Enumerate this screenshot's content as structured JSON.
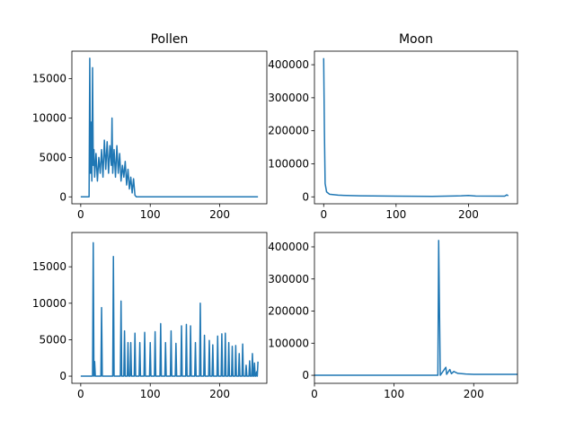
{
  "chart_data": [
    {
      "type": "line",
      "title": "Pollen",
      "color": "#1f77b4",
      "x": [
        0,
        12,
        13,
        14,
        15,
        16,
        17,
        18,
        19,
        20,
        22,
        24,
        26,
        28,
        30,
        32,
        34,
        36,
        38,
        40,
        42,
        44,
        45,
        46,
        48,
        50,
        52,
        54,
        56,
        58,
        60,
        62,
        64,
        66,
        68,
        70,
        72,
        74,
        76,
        78,
        80,
        255
      ],
      "values": [
        0,
        0,
        17600,
        3000,
        9500,
        2000,
        16400,
        4000,
        6000,
        2500,
        5500,
        2000,
        5000,
        3000,
        6000,
        2500,
        7200,
        3500,
        7000,
        3000,
        6500,
        4000,
        10000,
        3000,
        6000,
        2500,
        6500,
        3000,
        5500,
        2000,
        4000,
        2500,
        4500,
        1500,
        3500,
        1000,
        2500,
        500,
        2300,
        200,
        0,
        0
      ],
      "xlim": [
        -12.75,
        267.75
      ],
      "ylim": [
        -880,
        18500
      ],
      "xticks": [
        0,
        100,
        200
      ],
      "yticks": [
        0,
        5000,
        10000,
        15000
      ]
    },
    {
      "type": "line",
      "title": "Moon",
      "color": "#1f77b4",
      "x": [
        0,
        1,
        2,
        4,
        8,
        20,
        50,
        100,
        150,
        190,
        200,
        210,
        250,
        253,
        255
      ],
      "values": [
        420000,
        200000,
        40000,
        15000,
        8000,
        5000,
        3000,
        2000,
        1500,
        3000,
        4000,
        2500,
        2000,
        6000,
        3000
      ],
      "xlim": [
        -12.75,
        267.75
      ],
      "ylim": [
        -21000,
        441000
      ],
      "xticks": [
        0,
        100,
        200
      ],
      "yticks": [
        0,
        100000,
        200000,
        300000,
        400000
      ]
    },
    {
      "type": "line",
      "color": "#1f77b4",
      "x": [
        0,
        17,
        18,
        19,
        20,
        21,
        29,
        30,
        31,
        46,
        47,
        48,
        57,
        58,
        59,
        62,
        63,
        64,
        67,
        68,
        69,
        71,
        72,
        73,
        77,
        78,
        79,
        84,
        85,
        86,
        91,
        92,
        93,
        99,
        100,
        101,
        106,
        107,
        108,
        114,
        115,
        116,
        121,
        122,
        123,
        129,
        130,
        131,
        136,
        137,
        138,
        144,
        145,
        146,
        151,
        152,
        153,
        157,
        158,
        159,
        164,
        165,
        166,
        171,
        172,
        173,
        177,
        178,
        179,
        184,
        185,
        186,
        189,
        190,
        191,
        196,
        197,
        198,
        202,
        203,
        204,
        207,
        208,
        209,
        212,
        213,
        214,
        217,
        218,
        219,
        222,
        223,
        224,
        227,
        228,
        229,
        232,
        233,
        234,
        237,
        238,
        239,
        242,
        243,
        244,
        246,
        247,
        248,
        249,
        250,
        251,
        252,
        253,
        254,
        255
      ],
      "values": [
        0,
        0,
        18300,
        0,
        2000,
        0,
        0,
        9400,
        0,
        0,
        16400,
        0,
        0,
        10300,
        0,
        0,
        6200,
        0,
        0,
        4600,
        0,
        0,
        4600,
        0,
        0,
        5900,
        0,
        0,
        4600,
        0,
        0,
        6000,
        0,
        0,
        4600,
        0,
        0,
        6100,
        0,
        0,
        7200,
        0,
        0,
        4600,
        0,
        0,
        6200,
        0,
        0,
        4500,
        0,
        0,
        6900,
        0,
        0,
        7100,
        0,
        0,
        6900,
        0,
        0,
        4600,
        0,
        0,
        10000,
        0,
        0,
        5600,
        0,
        0,
        4900,
        0,
        0,
        4300,
        0,
        0,
        5500,
        0,
        0,
        5800,
        0,
        0,
        5900,
        0,
        0,
        4600,
        0,
        0,
        4100,
        0,
        0,
        4200,
        0,
        0,
        3100,
        0,
        0,
        4400,
        0,
        0,
        1500,
        0,
        0,
        2100,
        0,
        0,
        3100,
        0,
        0,
        1800,
        0,
        0,
        600,
        0,
        2000
      ],
      "xlim": [
        -12.75,
        267.75
      ],
      "ylim": [
        -980,
        19700
      ],
      "xticks": [
        0,
        100,
        200
      ],
      "yticks": [
        0,
        5000,
        10000,
        15000
      ]
    },
    {
      "type": "line",
      "color": "#1f77b4",
      "x": [
        0,
        155,
        156,
        158,
        165,
        166,
        170,
        172,
        175,
        180,
        190,
        200,
        230,
        255
      ],
      "values": [
        0,
        0,
        420000,
        0,
        25000,
        3000,
        18000,
        5000,
        12000,
        6000,
        4000,
        3000,
        3000,
        3000
      ],
      "xlim": [
        0,
        255
      ],
      "ylim": [
        -25000,
        444700
      ],
      "xticks": [
        0,
        100,
        200
      ],
      "yticks": [
        0,
        100000,
        200000,
        300000,
        400000
      ]
    }
  ]
}
